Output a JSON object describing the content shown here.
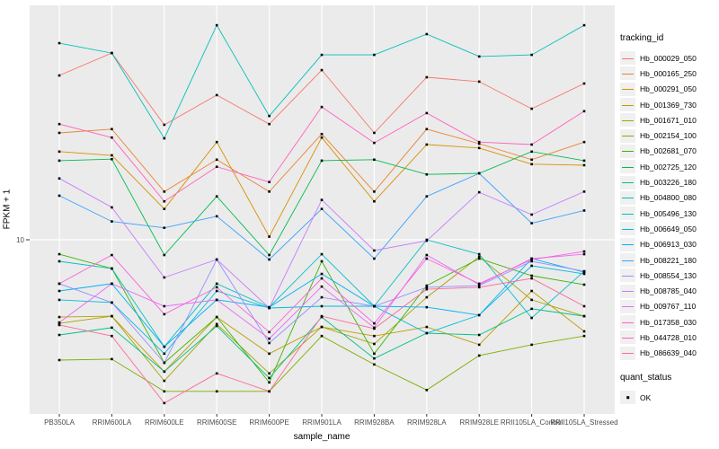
{
  "figure": {
    "panel_background": "#EBEBEB",
    "grid_color": "#FFFFFF",
    "axis_text_color": "#4D4D4D",
    "tick_color": "#333333",
    "point_color": "#000000"
  },
  "legend": {
    "tracking_title": "tracking_id",
    "quant_title": "quant_status",
    "quant_items": [
      {
        "label": "OK",
        "marker": "black-square"
      }
    ]
  },
  "chart_data": {
    "type": "line",
    "title": "",
    "xlabel": "sample_name",
    "ylabel": "FPKM + 1",
    "y_scale": "log10",
    "y_tick_labels": [
      "10"
    ],
    "y_tick_values": [
      10
    ],
    "y_range_approx": [
      2,
      90
    ],
    "grid": "white major gridlines on gray panel",
    "legend_position": "right",
    "point_marker": "small black square (quant_status = OK)",
    "categories": [
      "PB350LA",
      "RRIM600LA",
      "RRIM600LE",
      "RRIM600SE",
      "RRIM600PE",
      "RRIM901LA",
      "RRIM928BA",
      "RRIM928LA",
      "RRIM928LE",
      "RRII105LA_Control",
      "RRII105LA_Stressed"
    ],
    "series": [
      {
        "name": "Hb_000029_050",
        "color": "#F8766D",
        "values": [
          47.6,
          58.9,
          29.8,
          39.5,
          30.0,
          50.1,
          27.6,
          46.8,
          44.9,
          34.7,
          44.1
        ]
      },
      {
        "name": "Hb_000165_250",
        "color": "#EA8331",
        "values": [
          27.6,
          28.6,
          15.8,
          21.4,
          15.8,
          27.3,
          15.8,
          28.6,
          24.9,
          21.4,
          25.3
        ]
      },
      {
        "name": "Hb_000291_050",
        "color": "#D89000",
        "values": [
          23.1,
          22.3,
          13.4,
          25.3,
          10.3,
          26.4,
          14.4,
          24.7,
          23.9,
          20.5,
          20.3
        ]
      },
      {
        "name": "Hb_001369_730",
        "color": "#C09B00",
        "values": [
          4.8,
          4.84,
          2.86,
          4.8,
          3.39,
          4.37,
          4.01,
          4.37,
          3.69,
          6.15,
          4.19
        ]
      },
      {
        "name": "Hb_001671_010",
        "color": "#A3A500",
        "values": [
          4.52,
          4.84,
          2.62,
          4.49,
          2.81,
          4.37,
          3.72,
          5.79,
          8.51,
          5.65,
          4.84
        ]
      },
      {
        "name": "Hb_002154_100",
        "color": "#7CAE00",
        "values": [
          3.19,
          3.22,
          2.37,
          2.37,
          2.37,
          4.01,
          3.06,
          2.4,
          3.33,
          3.69,
          4.01
        ]
      },
      {
        "name": "Hb_002681_070",
        "color": "#39B600",
        "values": [
          8.72,
          7.61,
          3.11,
          4.8,
          2.58,
          8.15,
          3.39,
          6.47,
          8.36,
          7.11,
          6.53
        ]
      },
      {
        "name": "Hb_002725_120",
        "color": "#00BB4E",
        "values": [
          21.2,
          21.5,
          8.65,
          15.1,
          8.65,
          21.2,
          21.4,
          18.6,
          18.8,
          23.1,
          21.2
        ]
      },
      {
        "name": "Hb_003226_180",
        "color": "#00C087",
        "values": [
          4.05,
          4.34,
          2.86,
          4.41,
          2.69,
          4.8,
          3.24,
          4.12,
          4.05,
          5.19,
          4.84
        ]
      },
      {
        "name": "Hb_004800_080",
        "color": "#00C0B8",
        "values": [
          64.7,
          58.9,
          26.2,
          76.7,
          32.4,
          57.9,
          57.9,
          70.5,
          57.0,
          57.9,
          76.7
        ]
      },
      {
        "name": "Hb_005496_130",
        "color": "#00BFC4",
        "values": [
          8.15,
          7.61,
          3.62,
          6.59,
          5.27,
          8.72,
          5.32,
          10.0,
          8.72,
          4.76,
          7.41
        ]
      },
      {
        "name": "Hb_006649_050",
        "color": "#00BAE0",
        "values": [
          5.65,
          5.51,
          3.39,
          6.15,
          5.23,
          5.32,
          5.32,
          4.12,
          4.89,
          7.81,
          7.23
        ]
      },
      {
        "name": "Hb_006913_030",
        "color": "#00B0F6",
        "values": [
          6.15,
          6.59,
          3.62,
          5.65,
          5.27,
          7.23,
          5.32,
          5.27,
          4.89,
          8.36,
          7.35
        ]
      },
      {
        "name": "Hb_008221_180",
        "color": "#35A2FF",
        "values": [
          15.2,
          11.9,
          11.2,
          12.5,
          8.29,
          13.4,
          8.36,
          15.1,
          18.8,
          11.7,
          13.2
        ]
      },
      {
        "name": "Hb_008554_130",
        "color": "#9590FF",
        "values": [
          6.59,
          5.51,
          3.11,
          8.29,
          3.75,
          5.79,
          5.32,
          6.37,
          6.47,
          8.15,
          7.41
        ]
      },
      {
        "name": "Hb_008785_040",
        "color": "#C77CFF",
        "values": [
          17.9,
          13.6,
          6.99,
          8.29,
          5.23,
          14.6,
          9.03,
          9.91,
          15.7,
          12.7,
          15.8
        ]
      },
      {
        "name": "Hb_009767_110",
        "color": "#E76BF3",
        "values": [
          4.56,
          6.59,
          5.32,
          5.65,
          3.91,
          6.41,
          4.34,
          8.65,
          6.53,
          8.36,
          8.72
        ]
      },
      {
        "name": "Hb_017358_030",
        "color": "#FA62DB",
        "values": [
          6.59,
          8.65,
          4.93,
          6.37,
          4.16,
          6.93,
          4.52,
          8.36,
          6.59,
          8.29,
          8.95
        ]
      },
      {
        "name": "Hb_044728_010",
        "color": "#FF62BC",
        "values": [
          30.0,
          26.4,
          14.4,
          20.0,
          17.3,
          35.3,
          25.1,
          33.3,
          25.3,
          24.7,
          33.9
        ]
      },
      {
        "name": "Hb_086639_040",
        "color": "#FF6A98",
        "values": [
          4.45,
          4.01,
          2.12,
          2.81,
          2.37,
          4.84,
          4.3,
          6.25,
          6.37,
          6.93,
          5.32
        ]
      }
    ]
  }
}
